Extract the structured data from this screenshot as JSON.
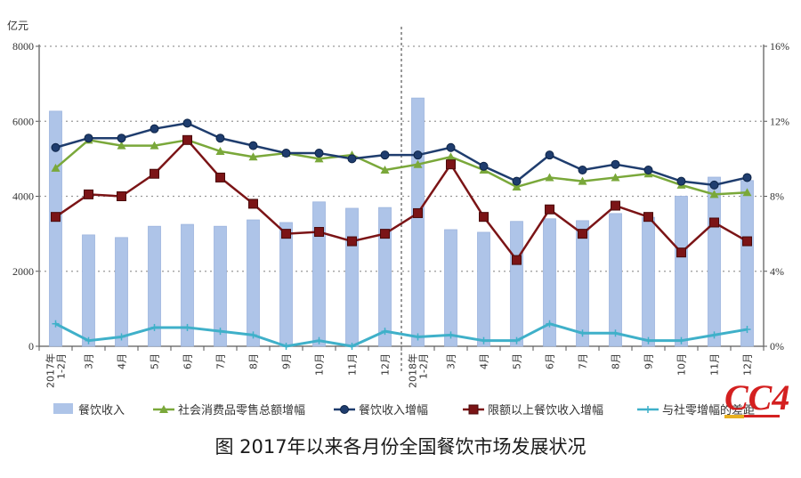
{
  "chart_data": {
    "type": "bar+line",
    "title": "图 2017年以来各月份全国餐饮市场发展状况",
    "left_axis": {
      "unit": "亿元",
      "ticks": [
        "0",
        "2000",
        "4000",
        "6000",
        "8000"
      ],
      "range": [
        0,
        8000
      ]
    },
    "right_axis": {
      "ticks": [
        "0%",
        "4%",
        "8%",
        "12%",
        "16%"
      ],
      "range": [
        0,
        16
      ]
    },
    "grid": "dotted horizontal",
    "categories": [
      "2017年1-2月",
      "3月",
      "4月",
      "5月",
      "6月",
      "7月",
      "8月",
      "9月",
      "10月",
      "11月",
      "12月",
      "2018年1-2月",
      "3月",
      "4月",
      "5月",
      "6月",
      "7月",
      "8月",
      "9月",
      "10月",
      "11月",
      "12月"
    ],
    "year_divider_after_index": 10,
    "series": [
      {
        "name": "餐饮收入",
        "type": "bar",
        "axis": "left",
        "color": "#aec4e8",
        "values": [
          6270,
          2970,
          2900,
          3200,
          3250,
          3200,
          3370,
          3300,
          3850,
          3680,
          3700,
          6620,
          3110,
          3040,
          3330,
          3400,
          3350,
          3540,
          3440,
          4000,
          4510,
          4420
        ]
      },
      {
        "name": "社会消费品零售总额增幅",
        "type": "line",
        "axis": "right",
        "color": "#7aa83a",
        "marker": "triangle",
        "values": [
          9.5,
          11.0,
          10.7,
          10.7,
          11.0,
          10.4,
          10.1,
          10.3,
          10.0,
          10.2,
          9.4,
          9.7,
          10.1,
          9.4,
          8.5,
          9.0,
          8.8,
          9.0,
          9.2,
          8.6,
          8.1,
          8.2
        ]
      },
      {
        "name": "餐饮收入增幅",
        "type": "line",
        "axis": "right",
        "color": "#1f3d6e",
        "marker": "circle",
        "values": [
          10.6,
          11.1,
          11.1,
          11.6,
          11.9,
          11.1,
          10.7,
          10.3,
          10.3,
          10.0,
          10.2,
          10.2,
          10.6,
          9.6,
          8.8,
          10.2,
          9.4,
          9.7,
          9.4,
          8.8,
          8.6,
          9.0
        ]
      },
      {
        "name": "限额以上餐饮收入增幅",
        "type": "line",
        "axis": "right",
        "color": "#7b1416",
        "marker": "square",
        "values": [
          6.9,
          8.1,
          8.0,
          9.2,
          11.0,
          9.0,
          7.6,
          6.0,
          6.1,
          5.6,
          6.0,
          7.1,
          9.7,
          6.9,
          4.6,
          7.3,
          6.0,
          7.5,
          6.9,
          5.0,
          6.6,
          5.6
        ]
      },
      {
        "name": "与社零增幅的差距",
        "type": "line",
        "axis": "right",
        "color": "#3fb0c9",
        "marker": "star",
        "values": [
          1.2,
          0.3,
          0.5,
          1.0,
          1.0,
          0.8,
          0.6,
          0.0,
          0.3,
          0.0,
          0.8,
          0.5,
          0.6,
          0.3,
          0.3,
          1.2,
          0.7,
          0.7,
          0.3,
          0.3,
          0.6,
          0.9
        ]
      }
    ],
    "legend_position": "bottom"
  },
  "caption": "图 2017年以来各月份全国餐饮市场发展状况",
  "logo_text": "CC4"
}
